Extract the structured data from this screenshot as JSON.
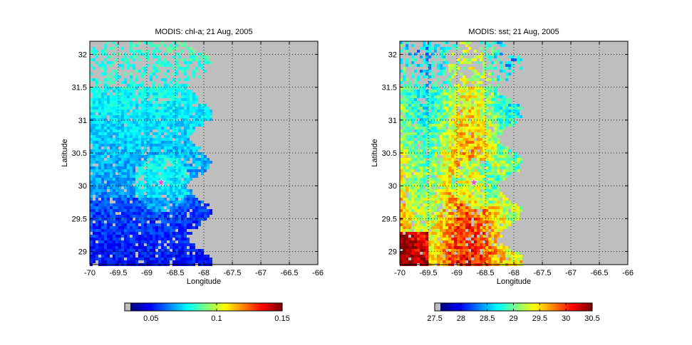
{
  "chart_data": [
    {
      "type": "heatmap",
      "title": "MODIS: chl-a; 21 Aug, 2005",
      "xlabel": "Longitude",
      "ylabel": "Latitude",
      "xlim": [
        -70,
        -66
      ],
      "ylim": [
        28.8,
        32.2
      ],
      "xticks": [
        -70,
        -69.5,
        -69,
        -68.5,
        -68,
        -67.5,
        -67,
        -66.5,
        -66
      ],
      "xtick_labels": [
        "-70",
        "-69.5",
        "-69",
        "-68.5",
        "-68",
        "-67.5",
        "-67",
        "-66.5",
        "-66"
      ],
      "yticks": [
        29,
        29.5,
        30,
        30.5,
        31,
        31.5,
        32
      ],
      "ytick_labels": [
        "29",
        "29.5",
        "30",
        "30.5",
        "31",
        "31.5",
        "32"
      ],
      "grid": true,
      "colormap": "jet",
      "no_data_color": "#bebebe",
      "data_extent_lon": [
        -70,
        -68
      ],
      "marker": {
        "symbol": "star",
        "lon": -68.75,
        "lat": 30.05,
        "color": "#e050d0"
      },
      "colorbar": {
        "range": [
          0.03,
          0.15
        ],
        "ticks": [
          0.05,
          0.1,
          0.15
        ],
        "tick_labels": [
          "0.05",
          "0.1",
          "0.15"
        ]
      },
      "field_level": 0.38
    },
    {
      "type": "heatmap",
      "title": "MODIS: sst; 21 Aug, 2005",
      "xlabel": "Longitude",
      "ylabel": "Latitude",
      "xlim": [
        -70,
        -66
      ],
      "ylim": [
        28.8,
        32.2
      ],
      "xticks": [
        -70,
        -69.5,
        -69,
        -68.5,
        -68,
        -67.5,
        -67,
        -66.5,
        -66
      ],
      "xtick_labels": [
        "-70",
        "-69.5",
        "-69",
        "-68.5",
        "-68",
        "-67.5",
        "-67",
        "-66.5",
        "-66"
      ],
      "yticks": [
        29,
        29.5,
        30,
        30.5,
        31,
        31.5,
        32
      ],
      "ytick_labels": [
        "29",
        "29.5",
        "30",
        "30.5",
        "31",
        "31.5",
        "32"
      ],
      "grid": true,
      "colormap": "jet",
      "no_data_color": "#bebebe",
      "data_extent_lon": [
        -70,
        -68
      ],
      "marker": {
        "symbol": "star",
        "lon": -68.7,
        "lat": 30.05,
        "color": "#e050d0"
      },
      "colorbar": {
        "range": [
          27.5,
          30.5
        ],
        "ticks": [
          27.5,
          28,
          28.5,
          29,
          29.5,
          30,
          30.5
        ],
        "tick_labels": [
          "27.5",
          "28",
          "28.5",
          "29",
          "29.5",
          "30",
          "30.5"
        ]
      },
      "field_level": 0.5
    }
  ]
}
